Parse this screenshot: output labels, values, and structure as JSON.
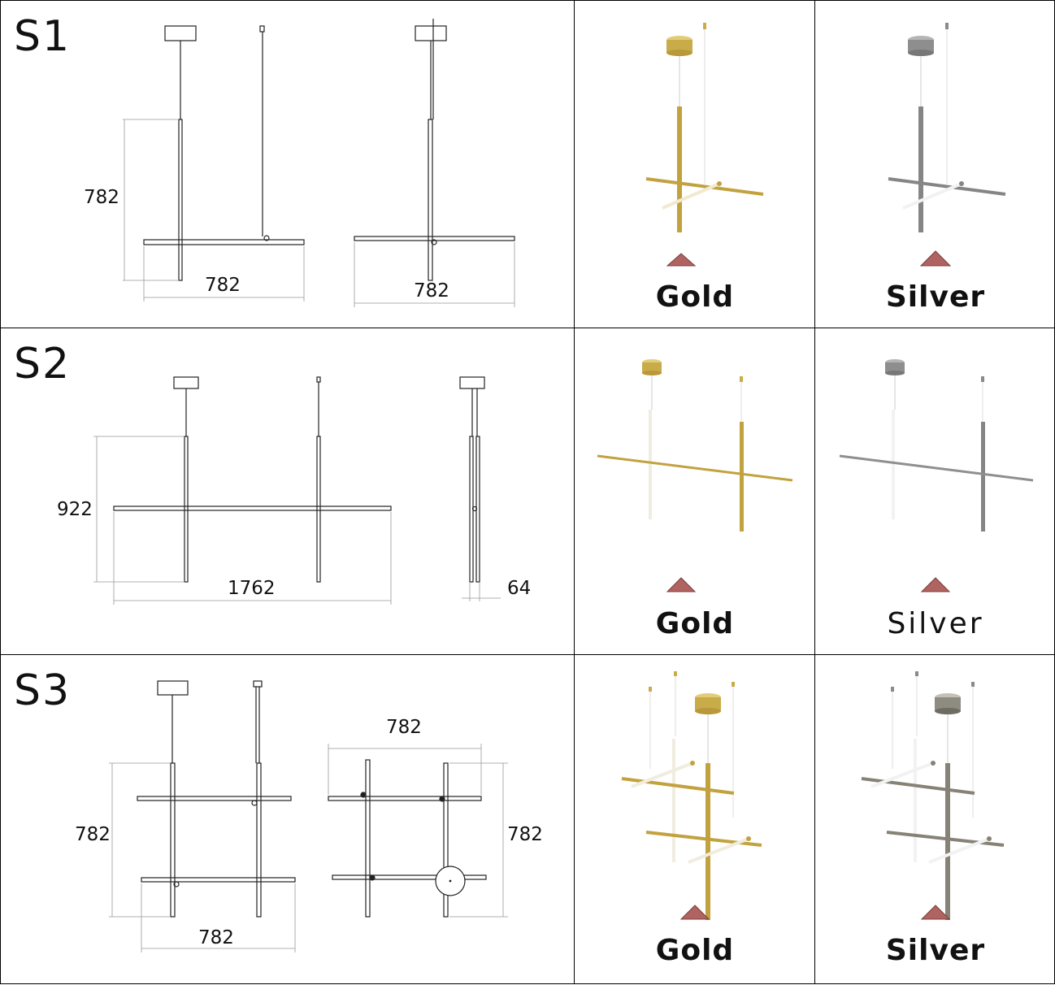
{
  "rows": [
    {
      "label": "S1",
      "dims": [
        "782",
        "782",
        "782"
      ],
      "finishes": [
        {
          "name": "Gold",
          "color": "#c9ac4a",
          "marker_color": "#b06462"
        },
        {
          "name": "Silver",
          "color": "#8a8a8a",
          "marker_color": "#b06462"
        }
      ]
    },
    {
      "label": "S2",
      "dims": [
        "922",
        "1762",
        "64"
      ],
      "finishes": [
        {
          "name": "Gold",
          "color": "#c9ac4a",
          "marker_color": "#b06462"
        },
        {
          "name": "Silver",
          "color": "#8a8a8a",
          "marker_color": "#b06462"
        }
      ]
    },
    {
      "label": "S3",
      "dims": [
        "782",
        "782",
        "782",
        "782"
      ],
      "finishes": [
        {
          "name": "Gold",
          "color": "#c9ac4a",
          "marker_color": "#b06462"
        },
        {
          "name": "Silver",
          "color": "#8a8a8a",
          "marker_color": "#b06462"
        }
      ]
    }
  ]
}
